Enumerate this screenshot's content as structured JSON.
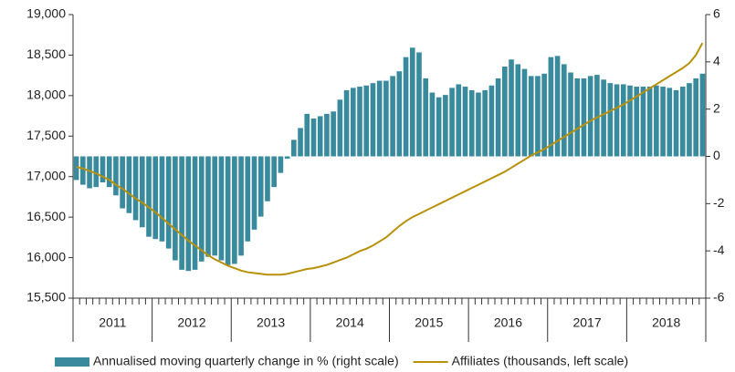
{
  "chart_data": {
    "type": "bar_line_dual",
    "categories": [
      null,
      null,
      null,
      null,
      null,
      null,
      null,
      null,
      null,
      null,
      null,
      null,
      null,
      null,
      null,
      null,
      null,
      null,
      null,
      null,
      null,
      null,
      null,
      null,
      null,
      null,
      null,
      null,
      null,
      null,
      null,
      null,
      null,
      null,
      null,
      null,
      null,
      null,
      null,
      null,
      null,
      null,
      null,
      null,
      null,
      null,
      null,
      null,
      null,
      null,
      null,
      null,
      null,
      null,
      null,
      null,
      null,
      null,
      null,
      null,
      null,
      null,
      null,
      null,
      null,
      null,
      null,
      null,
      null,
      null,
      null,
      null,
      null,
      null,
      null,
      null,
      null,
      null,
      null,
      null,
      null,
      null,
      null,
      null,
      null,
      null,
      null,
      null,
      null,
      null,
      null,
      null,
      null,
      null,
      null,
      null
    ],
    "year_labels": [
      "2011",
      "2012",
      "2013",
      "2014",
      "2015",
      "2016",
      "2017",
      "2018"
    ],
    "series": [
      {
        "name": "Annualised moving quarterly change in % (right scale)",
        "color": "#3a8a9e",
        "axis": "y2",
        "kind": "bar",
        "values": [
          -1.0,
          -1.2,
          -1.35,
          -1.3,
          -1.1,
          -1.3,
          -1.65,
          -2.2,
          -2.4,
          -2.7,
          -3.0,
          -3.4,
          -3.5,
          -3.6,
          -3.9,
          -4.4,
          -4.8,
          -4.85,
          -4.8,
          -4.45,
          -4.25,
          -4.2,
          -4.4,
          -4.6,
          -4.55,
          -4.2,
          -3.6,
          -3.1,
          -2.55,
          -1.9,
          -1.3,
          -0.7,
          -0.1,
          0.7,
          1.2,
          1.8,
          1.6,
          1.7,
          1.8,
          1.9,
          2.4,
          2.8,
          2.9,
          2.95,
          3.0,
          3.1,
          3.2,
          3.2,
          3.4,
          3.6,
          4.2,
          4.6,
          4.4,
          3.3,
          2.7,
          2.5,
          2.6,
          2.9,
          3.05,
          2.95,
          2.8,
          2.7,
          2.8,
          3.0,
          3.3,
          3.8,
          4.1,
          3.9,
          3.7,
          3.4,
          3.4,
          3.5,
          4.2,
          4.25,
          3.9,
          3.55,
          3.3,
          3.3,
          3.4,
          3.45,
          3.25,
          3.1,
          3.05,
          3.05,
          3.0,
          2.95,
          2.95,
          2.95,
          3.0,
          2.95,
          2.9,
          2.8,
          2.95,
          3.1,
          3.3,
          3.5
        ]
      },
      {
        "name": "Affiliates (thousands, left scale)",
        "color": "#b8900a",
        "axis": "y",
        "kind": "line",
        "values": [
          17120,
          17100,
          17070,
          17040,
          17000,
          16960,
          16900,
          16850,
          16790,
          16730,
          16680,
          16620,
          16560,
          16490,
          16420,
          16350,
          16280,
          16210,
          16150,
          16090,
          16030,
          15980,
          15940,
          15900,
          15870,
          15840,
          15820,
          15810,
          15800,
          15790,
          15790,
          15790,
          15800,
          15820,
          15840,
          15860,
          15870,
          15890,
          15910,
          15940,
          15970,
          16000,
          16040,
          16080,
          16110,
          16150,
          16200,
          16250,
          16320,
          16390,
          16450,
          16500,
          16540,
          16580,
          16620,
          16660,
          16700,
          16740,
          16780,
          16820,
          16860,
          16900,
          16940,
          16980,
          17020,
          17060,
          17110,
          17160,
          17210,
          17260,
          17300,
          17340,
          17390,
          17440,
          17490,
          17540,
          17590,
          17640,
          17690,
          17730,
          17770,
          17810,
          17850,
          17890,
          17940,
          17990,
          18040,
          18090,
          18140,
          18190,
          18240,
          18290,
          18340,
          18400,
          18500,
          18650
        ]
      }
    ],
    "ylim": [
      15500,
      19000
    ],
    "yticks": [
      {
        "value": 15500,
        "label": "15,500"
      },
      {
        "value": 16000,
        "label": "16,000"
      },
      {
        "value": 16500,
        "label": "16,500"
      },
      {
        "value": 17000,
        "label": "17,000"
      },
      {
        "value": 17500,
        "label": "17,500"
      },
      {
        "value": 18000,
        "label": "18,000"
      },
      {
        "value": 18500,
        "label": "18,500"
      },
      {
        "value": 19000,
        "label": "19,000"
      }
    ],
    "y2lim": [
      -6,
      6
    ],
    "y2ticks": [
      -6,
      -4,
      -2,
      0,
      2,
      4,
      6
    ],
    "legend": "bottom"
  }
}
